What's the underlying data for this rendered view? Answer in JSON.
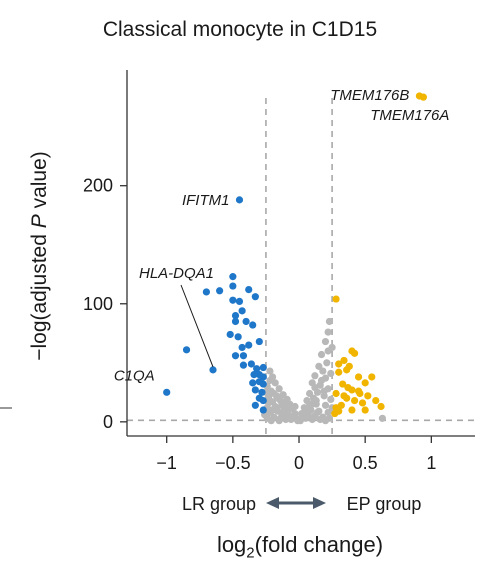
{
  "chart_data": {
    "type": "scatter",
    "title": "Classical monocyte in C1D15",
    "xlabel_main": "log",
    "xlabel_sub": "2",
    "xlabel_rest": "(fold change)",
    "ylabel_pre": "−log(adjusted ",
    "ylabel_italic": "P",
    "ylabel_post": " value)",
    "xlim": [
      -1.3,
      1.33
    ],
    "ylim": [
      -12,
      298
    ],
    "x_ticks": [
      -1,
      -0.5,
      0,
      0.5,
      1
    ],
    "x_tick_labels": [
      "−1",
      "−0.5",
      "0",
      "0.5",
      "1"
    ],
    "y_ticks": [
      0,
      100,
      200
    ],
    "y_tick_labels": [
      "0",
      "100",
      "200"
    ],
    "thresholds": {
      "x": [
        -0.25,
        0.25
      ],
      "y": 1.3
    },
    "group_left": "LR group",
    "group_right": "EP group",
    "colors": {
      "down": "#1f77c9",
      "up": "#f1b500",
      "ns": "#b8b8b8",
      "dashed": "#a8a8a8",
      "axis": "#333333",
      "arrow": "#4a5a6a"
    },
    "series": [
      {
        "key": "down",
        "points": [
          [
            -0.45,
            188
          ],
          [
            -0.5,
            123
          ],
          [
            -1.0,
            25
          ],
          [
            -0.85,
            61
          ],
          [
            -0.65,
            44
          ],
          [
            -0.7,
            110
          ],
          [
            -0.6,
            111
          ],
          [
            -0.5,
            115
          ],
          [
            -0.5,
            103
          ],
          [
            -0.45,
            102
          ],
          [
            -0.38,
            112
          ],
          [
            -0.33,
            106
          ],
          [
            -0.48,
            90
          ],
          [
            -0.43,
            94
          ],
          [
            -0.48,
            85
          ],
          [
            -0.4,
            85
          ],
          [
            -0.35,
            82
          ],
          [
            -0.52,
            74
          ],
          [
            -0.46,
            72
          ],
          [
            -0.43,
            63
          ],
          [
            -0.38,
            65
          ],
          [
            -0.42,
            56
          ],
          [
            -0.48,
            56
          ],
          [
            -0.3,
            68
          ],
          [
            -0.42,
            48
          ],
          [
            -0.36,
            49
          ],
          [
            -0.32,
            45
          ],
          [
            -0.27,
            46
          ],
          [
            -0.34,
            40
          ],
          [
            -0.3,
            40
          ],
          [
            -0.27,
            38
          ],
          [
            -0.35,
            33
          ],
          [
            -0.3,
            34
          ],
          [
            -0.27,
            32
          ],
          [
            -0.33,
            27
          ],
          [
            -0.28,
            25
          ],
          [
            -0.3,
            20
          ],
          [
            -0.27,
            18
          ],
          [
            -0.33,
            14
          ],
          [
            -0.27,
            10
          ]
        ]
      },
      {
        "key": "up",
        "points": [
          [
            0.91,
            276
          ],
          [
            0.94,
            275
          ],
          [
            0.28,
            104
          ],
          [
            0.4,
            60
          ],
          [
            0.42,
            58
          ],
          [
            0.34,
            52
          ],
          [
            0.3,
            49
          ],
          [
            0.38,
            47
          ],
          [
            0.36,
            44
          ],
          [
            0.3,
            42
          ],
          [
            0.45,
            38
          ],
          [
            0.5,
            33
          ],
          [
            0.33,
            32
          ],
          [
            0.37,
            29
          ],
          [
            0.4,
            27
          ],
          [
            0.45,
            26
          ],
          [
            0.28,
            24
          ],
          [
            0.34,
            22
          ],
          [
            0.36,
            20
          ],
          [
            0.42,
            18
          ],
          [
            0.48,
            16
          ],
          [
            0.58,
            18
          ],
          [
            0.62,
            13
          ],
          [
            0.28,
            12
          ],
          [
            0.32,
            14
          ],
          [
            0.4,
            10
          ],
          [
            0.5,
            10
          ],
          [
            0.3,
            9
          ],
          [
            0.55,
            38
          ],
          [
            0.46,
            24
          ],
          [
            0.52,
            22
          ],
          [
            0.27,
            7
          ]
        ]
      },
      {
        "key": "ns",
        "points": [
          [
            0.23,
            85
          ],
          [
            0.22,
            76
          ],
          [
            0.2,
            68
          ],
          [
            0.17,
            57
          ],
          [
            0.21,
            50
          ],
          [
            0.15,
            47
          ],
          [
            0.18,
            43
          ],
          [
            0.12,
            39
          ],
          [
            0.2,
            37
          ],
          [
            0.1,
            33
          ],
          [
            0.16,
            31
          ],
          [
            0.22,
            28
          ],
          [
            0.14,
            25
          ],
          [
            0.08,
            24
          ],
          [
            0.19,
            22
          ],
          [
            0.11,
            20
          ],
          [
            0.24,
            19
          ],
          [
            0.06,
            18
          ],
          [
            0.13,
            15
          ],
          [
            0.2,
            14
          ],
          [
            0.04,
            12
          ],
          [
            0.09,
            10
          ],
          [
            0.15,
            9
          ],
          [
            0.22,
            8
          ],
          [
            0.02,
            7
          ],
          [
            0.07,
            6
          ],
          [
            0.12,
            5
          ],
          [
            0.18,
            4
          ],
          [
            0.23,
            3
          ],
          [
            0.05,
            3
          ],
          [
            0.1,
            2
          ],
          [
            0.16,
            2
          ],
          [
            0.01,
            1
          ],
          [
            0.2,
            1
          ],
          [
            0.03,
            4
          ],
          [
            0.14,
            8
          ],
          [
            0.25,
            12
          ],
          [
            0.19,
            26
          ],
          [
            0.24,
            41
          ],
          [
            0.17,
            35
          ],
          [
            0.22,
            60
          ],
          [
            0.12,
            29
          ],
          [
            0.1,
            15
          ],
          [
            0.06,
            9
          ],
          [
            0.63,
            3
          ],
          [
            0.25,
            63
          ],
          [
            -0.22,
            43
          ],
          [
            -0.2,
            38
          ],
          [
            -0.18,
            33
          ],
          [
            -0.24,
            30
          ],
          [
            -0.15,
            28
          ],
          [
            -0.21,
            26
          ],
          [
            -0.12,
            23
          ],
          [
            -0.17,
            22
          ],
          [
            -0.23,
            21
          ],
          [
            -0.09,
            19
          ],
          [
            -0.14,
            18
          ],
          [
            -0.2,
            17
          ],
          [
            -0.07,
            15
          ],
          [
            -0.13,
            14
          ],
          [
            -0.18,
            13
          ],
          [
            -0.24,
            12
          ],
          [
            -0.05,
            11
          ],
          [
            -0.11,
            10
          ],
          [
            -0.16,
            9
          ],
          [
            -0.22,
            8
          ],
          [
            -0.03,
            7
          ],
          [
            -0.08,
            6
          ],
          [
            -0.13,
            5
          ],
          [
            -0.19,
            4
          ],
          [
            -0.24,
            3
          ],
          [
            -0.02,
            3
          ],
          [
            -0.06,
            2
          ],
          [
            -0.1,
            2
          ],
          [
            -0.15,
            1
          ],
          [
            -0.21,
            1
          ],
          [
            -0.01,
            1
          ],
          [
            -0.04,
            4
          ],
          [
            -0.12,
            7
          ],
          [
            -0.17,
            11
          ],
          [
            -0.23,
            16
          ],
          [
            -0.19,
            24
          ],
          [
            -0.22,
            35
          ],
          [
            -0.26,
            6
          ],
          [
            -0.16,
            20
          ],
          [
            -0.08,
            12
          ],
          [
            -0.11,
            16
          ],
          [
            -0.25,
            25
          ],
          [
            -0.2,
            10
          ],
          [
            -0.07,
            5
          ],
          [
            -0.14,
            3
          ],
          [
            0.05,
            8
          ],
          [
            0.08,
            14
          ],
          [
            0.13,
            18
          ],
          [
            -0.09,
            9
          ],
          [
            -0.03,
            13
          ]
        ]
      }
    ],
    "annotations": [
      {
        "text": "IFITM1",
        "point": [
          -0.45,
          188
        ]
      },
      {
        "text": "HLA-DQA1",
        "point": [
          -0.65,
          44
        ]
      },
      {
        "text": "C1QA",
        "point": [
          -1.0,
          25
        ]
      },
      {
        "text": "TMEM176B",
        "point": [
          0.91,
          276
        ]
      },
      {
        "text": "TMEM176A",
        "point": [
          0.94,
          275
        ]
      }
    ]
  }
}
